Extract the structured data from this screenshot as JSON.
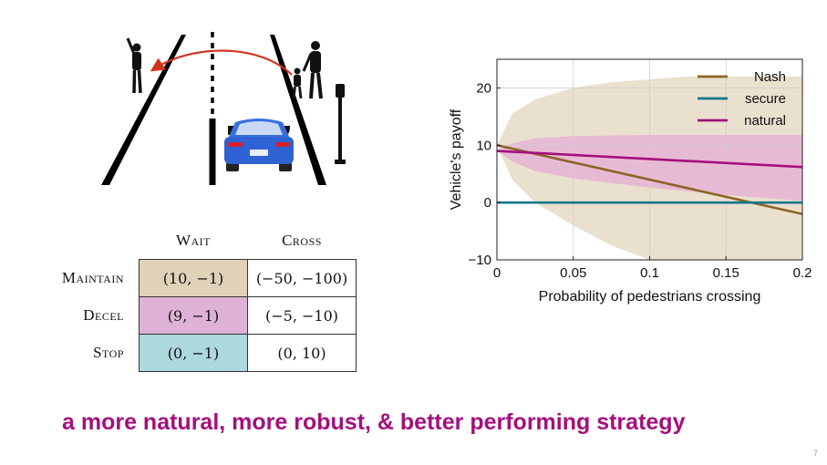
{
  "payoff_table": {
    "columns": [
      "Wait",
      "Cross"
    ],
    "rows": [
      {
        "label": "Maintain",
        "cells": [
          "(10, −1)",
          "(−50, −100)"
        ],
        "color": "#e0d2b8"
      },
      {
        "label": "Decel",
        "cells": [
          "(9, −1)",
          "(−5, −10)"
        ],
        "color": "#deb1d6"
      },
      {
        "label": "Stop",
        "cells": [
          "(0, −1)",
          "(0, 10)"
        ],
        "color": "#acd8de"
      }
    ]
  },
  "chart_data": {
    "type": "line",
    "title": "",
    "xlabel": "Probability of pedestrians crossing",
    "ylabel": "Vehicle's payoff",
    "xlim": [
      0,
      0.2
    ],
    "ylim": [
      -10,
      25
    ],
    "xticks": [
      0,
      0.05,
      0.1,
      0.15,
      0.2
    ],
    "xtick_labels": [
      "0",
      "0.05",
      "0.1",
      "0.15",
      "0.2"
    ],
    "yticks": [
      -10,
      0,
      10,
      20
    ],
    "ytick_labels": [
      "−10",
      "0",
      "10",
      "20"
    ],
    "grid": true,
    "legend_position": "top-right",
    "series": [
      {
        "name": "Nash",
        "color": "#8c6424",
        "x": [
          0,
          0.2
        ],
        "y": [
          10,
          -2
        ],
        "band_color": "#e6dac5",
        "band_x": [
          0,
          0.01,
          0.025,
          0.05,
          0.075,
          0.1,
          0.125,
          0.15,
          0.175,
          0.2
        ],
        "band_lower": [
          10,
          4,
          0,
          -4,
          -7.5,
          -10,
          -10,
          -10,
          -10,
          -10
        ],
        "band_upper": [
          10,
          15.5,
          18,
          20,
          21,
          21.5,
          22,
          22,
          22,
          22
        ]
      },
      {
        "name": "secure",
        "color": "#12778c",
        "x": [
          0,
          0.2
        ],
        "y": [
          0,
          0
        ]
      },
      {
        "name": "natural",
        "color": "#a3107d",
        "x": [
          0,
          0.2
        ],
        "y": [
          9,
          6.2
        ],
        "band_color": "#e6b3d5",
        "band_x": [
          0,
          0.01,
          0.025,
          0.05,
          0.1,
          0.15,
          0.2
        ],
        "band_lower": [
          9,
          7.2,
          5.5,
          4.2,
          2.6,
          1.3,
          0.3
        ],
        "band_upper": [
          9,
          10.3,
          11.2,
          11.6,
          11.8,
          11.8,
          11.8
        ]
      }
    ]
  },
  "tagline": "a more natural, more robust, & better performing strategy",
  "page_number": "7",
  "icons": {
    "scene": [
      "road-icon",
      "car-icon",
      "adult-pedestrian-icon",
      "child-pedestrian-icon",
      "waving-pedestrian-icon",
      "street-lamp-icon",
      "crossing-arrow-icon"
    ]
  }
}
